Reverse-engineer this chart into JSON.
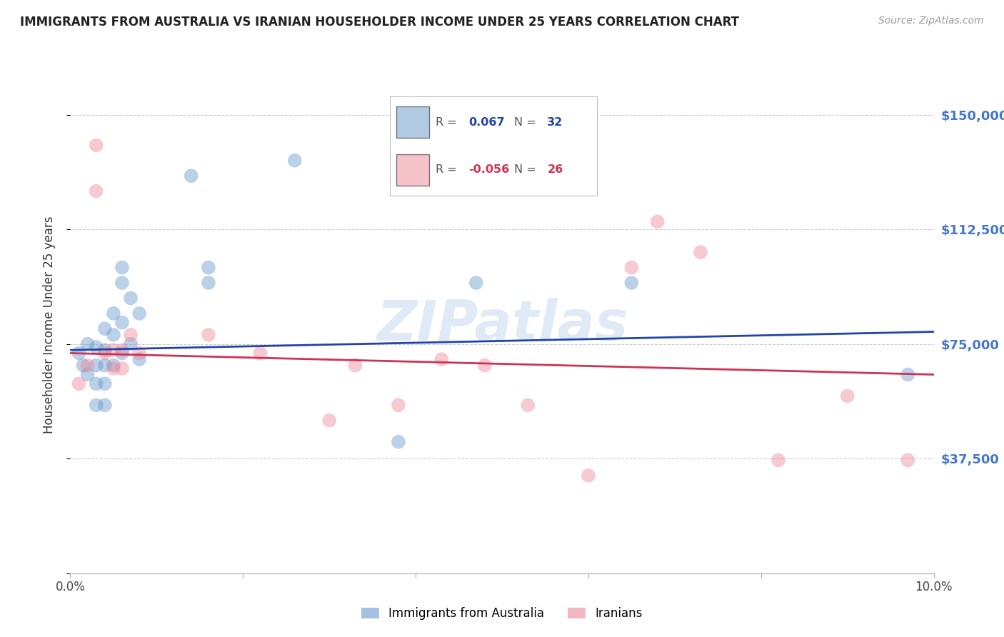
{
  "title": "IMMIGRANTS FROM AUSTRALIA VS IRANIAN HOUSEHOLDER INCOME UNDER 25 YEARS CORRELATION CHART",
  "source": "Source: ZipAtlas.com",
  "ylabel": "Householder Income Under 25 years",
  "xlim": [
    0.0,
    0.1
  ],
  "ylim": [
    0,
    162500
  ],
  "yticks": [
    0,
    37500,
    75000,
    112500,
    150000
  ],
  "ytick_labels": [
    "",
    "$37,500",
    "$75,000",
    "$112,500",
    "$150,000"
  ],
  "xticks": [
    0.0,
    0.02,
    0.04,
    0.06,
    0.08,
    0.1
  ],
  "xtick_labels": [
    "0.0%",
    "",
    "",
    "",
    "",
    "10.0%"
  ],
  "grid_color": "#cccccc",
  "watermark": "ZIPatlas",
  "blue_color": "#6699cc",
  "pink_color": "#ee8899",
  "line_blue": "#2244aa",
  "line_pink": "#cc3355",
  "title_color": "#222222",
  "right_tick_color": "#4477cc",
  "australia_x": [
    0.001,
    0.0015,
    0.002,
    0.002,
    0.003,
    0.003,
    0.003,
    0.003,
    0.004,
    0.004,
    0.004,
    0.004,
    0.004,
    0.005,
    0.005,
    0.005,
    0.006,
    0.006,
    0.006,
    0.006,
    0.007,
    0.007,
    0.008,
    0.008,
    0.014,
    0.016,
    0.016,
    0.026,
    0.038,
    0.047,
    0.065,
    0.097
  ],
  "australia_y": [
    72000,
    68000,
    75000,
    65000,
    74000,
    68000,
    62000,
    55000,
    80000,
    73000,
    68000,
    62000,
    55000,
    85000,
    78000,
    68000,
    100000,
    95000,
    82000,
    72000,
    90000,
    75000,
    85000,
    70000,
    130000,
    100000,
    95000,
    135000,
    43000,
    95000,
    95000,
    65000
  ],
  "iranian_x": [
    0.001,
    0.002,
    0.003,
    0.003,
    0.004,
    0.005,
    0.005,
    0.006,
    0.006,
    0.007,
    0.008,
    0.016,
    0.022,
    0.03,
    0.033,
    0.038,
    0.043,
    0.048,
    0.053,
    0.06,
    0.065,
    0.068,
    0.073,
    0.082,
    0.09,
    0.097
  ],
  "iranian_y": [
    62000,
    68000,
    140000,
    125000,
    72000,
    73000,
    67000,
    73000,
    67000,
    78000,
    72000,
    78000,
    72000,
    50000,
    68000,
    55000,
    70000,
    68000,
    55000,
    32000,
    100000,
    115000,
    105000,
    37000,
    58000,
    37000
  ],
  "australia_trendline_x": [
    0.0,
    0.1
  ],
  "australia_trendline_y": [
    73000,
    79000
  ],
  "iranian_trendline_x": [
    0.0,
    0.1
  ],
  "iranian_trendline_y": [
    72000,
    65000
  ],
  "marker_size": 200,
  "marker_alpha": 0.45
}
